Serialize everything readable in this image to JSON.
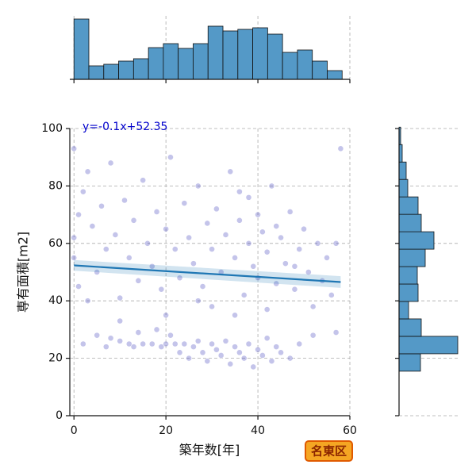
{
  "chart_data": {
    "type": "scatter",
    "xlabel": "築年数[年]",
    "ylabel": "専有面積[m2]",
    "annotation": "y=-0.1x+52.35",
    "badge": "名東区",
    "color": "#3a3ab8",
    "line_color": "#1f77b4",
    "hist_color": "#5499c7",
    "grid": true,
    "xlim": [
      -0.9,
      60
    ],
    "ylim": [
      0,
      100
    ],
    "xticks": [
      0,
      20,
      40,
      60
    ],
    "yticks": [
      0,
      20,
      40,
      60,
      80,
      100
    ],
    "x": [
      2,
      5,
      7,
      8,
      10,
      12,
      13,
      14,
      15,
      17,
      18,
      19,
      20,
      21,
      22,
      23,
      24,
      25,
      26,
      27,
      28,
      29,
      30,
      31,
      32,
      33,
      34,
      35,
      36,
      37,
      38,
      39,
      40,
      41,
      42,
      43,
      44,
      45,
      47,
      49,
      52,
      57,
      0,
      0,
      0,
      1,
      1,
      2,
      3,
      4,
      5,
      6,
      7,
      8,
      9,
      10,
      11,
      12,
      13,
      14,
      15,
      16,
      17,
      18,
      19,
      20,
      21,
      22,
      23,
      24,
      25,
      26,
      27,
      28,
      29,
      30,
      31,
      32,
      33,
      34,
      35,
      36,
      37,
      38,
      38,
      39,
      40,
      40,
      41,
      42,
      43,
      44,
      45,
      46,
      47,
      48,
      49,
      50,
      51,
      52,
      53,
      54,
      55,
      56,
      57,
      58,
      35,
      30,
      42,
      48,
      44,
      36,
      27,
      20,
      10,
      3
    ],
    "y": [
      25,
      28,
      24,
      27,
      26,
      25,
      24,
      29,
      25,
      25,
      30,
      24,
      25,
      28,
      25,
      22,
      25,
      20,
      24,
      26,
      22,
      19,
      25,
      23,
      21,
      26,
      18,
      24,
      22,
      20,
      25,
      17,
      23,
      21,
      27,
      19,
      24,
      22,
      20,
      25,
      28,
      29,
      93,
      62,
      55,
      70,
      45,
      78,
      85,
      66,
      50,
      73,
      58,
      88,
      63,
      41,
      75,
      55,
      68,
      47,
      82,
      60,
      52,
      71,
      44,
      65,
      90,
      58,
      48,
      74,
      62,
      53,
      80,
      45,
      67,
      58,
      72,
      50,
      63,
      85,
      55,
      68,
      42,
      76,
      60,
      52,
      70,
      48,
      64,
      57,
      80,
      46,
      62,
      53,
      71,
      44,
      58,
      65,
      50,
      38,
      60,
      47,
      55,
      42,
      60,
      93,
      35,
      38,
      37,
      52,
      66,
      78,
      40,
      35,
      33,
      40
    ],
    "regression": {
      "x": [
        0,
        58
      ],
      "values": [
        52.35,
        46.55
      ],
      "lower": [
        50.5,
        44.5
      ],
      "upper": [
        54.2,
        48.6
      ]
    },
    "top_histogram": {
      "bins": [
        0,
        3.24,
        6.48,
        9.72,
        12.96,
        16.2,
        19.44,
        22.68,
        25.92,
        29.16,
        32.4,
        35.64,
        38.88,
        42.12,
        45.36,
        48.6,
        51.84,
        55.08,
        58.32
      ],
      "counts": [
        76,
        17,
        19,
        23,
        26,
        40,
        45,
        39,
        45,
        67,
        61,
        63,
        65,
        57,
        34,
        37,
        23,
        11
      ]
    },
    "right_histogram": {
      "bins": [
        15.5,
        21.57,
        27.64,
        33.71,
        39.78,
        45.85,
        51.92,
        57.99,
        64.06,
        70.13,
        76.2,
        82.27,
        88.34,
        94.41,
        100.48
      ],
      "counts": [
        27,
        74,
        28,
        12,
        24,
        23,
        33,
        44,
        28,
        24,
        11,
        9,
        4,
        2
      ]
    }
  }
}
